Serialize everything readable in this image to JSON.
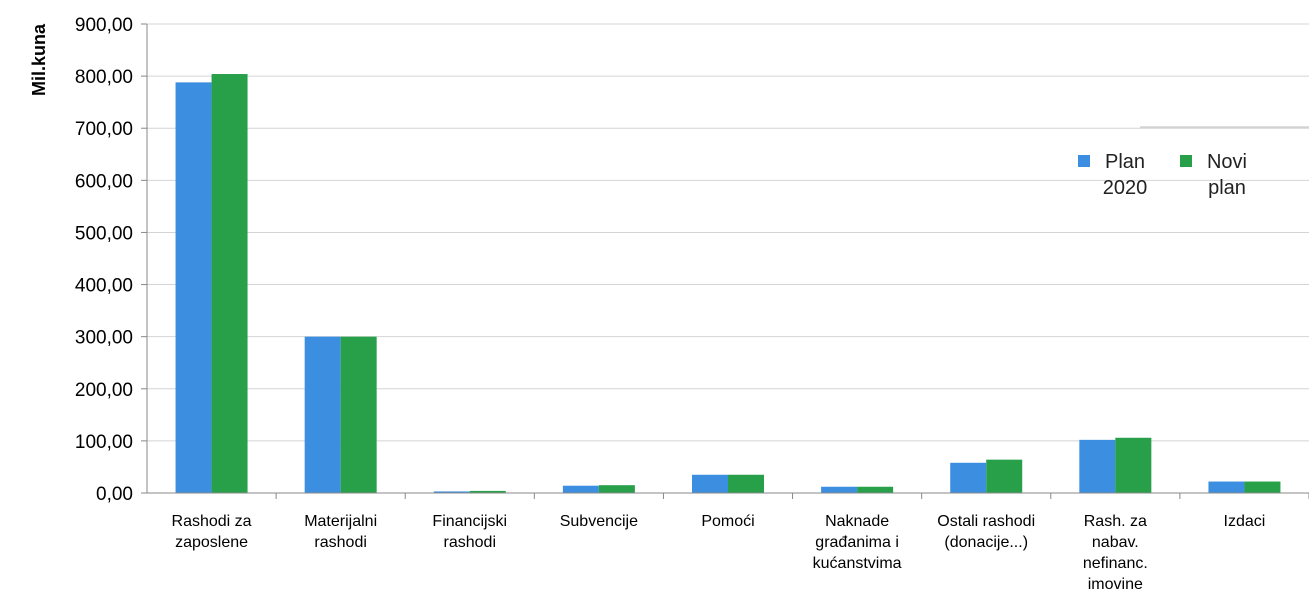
{
  "chart_data": {
    "type": "bar",
    "ylabel": "Mil.kuna",
    "ylim": [
      0,
      900
    ],
    "yticks": [
      "0,00",
      "100,00",
      "200,00",
      "300,00",
      "400,00",
      "500,00",
      "600,00",
      "700,00",
      "800,00",
      "900,00"
    ],
    "grid": true,
    "legend_position": "right",
    "categories": [
      [
        "Rashodi za",
        "zaposlene"
      ],
      [
        "Materijalni",
        "rashodi"
      ],
      [
        "Financijski",
        "rashodi"
      ],
      [
        "Subvencije"
      ],
      [
        "Pomoći"
      ],
      [
        "Naknade",
        "građanima i",
        "kućanstvima"
      ],
      [
        "Ostali rashodi",
        "(donacije...)"
      ],
      [
        "Rash. za",
        "nabav.",
        "nefinanc.",
        "imovine"
      ],
      [
        "Izdaci"
      ]
    ],
    "series": [
      {
        "name": [
          "Plan",
          "2020"
        ],
        "color": "#3c8fe0",
        "values": [
          788,
          300,
          3,
          14,
          35,
          12,
          58,
          102,
          22
        ]
      },
      {
        "name": [
          "Novi",
          "plan"
        ],
        "color": "#28a04a",
        "values": [
          804,
          300,
          4,
          15,
          35,
          12,
          64,
          106,
          22
        ]
      }
    ]
  }
}
